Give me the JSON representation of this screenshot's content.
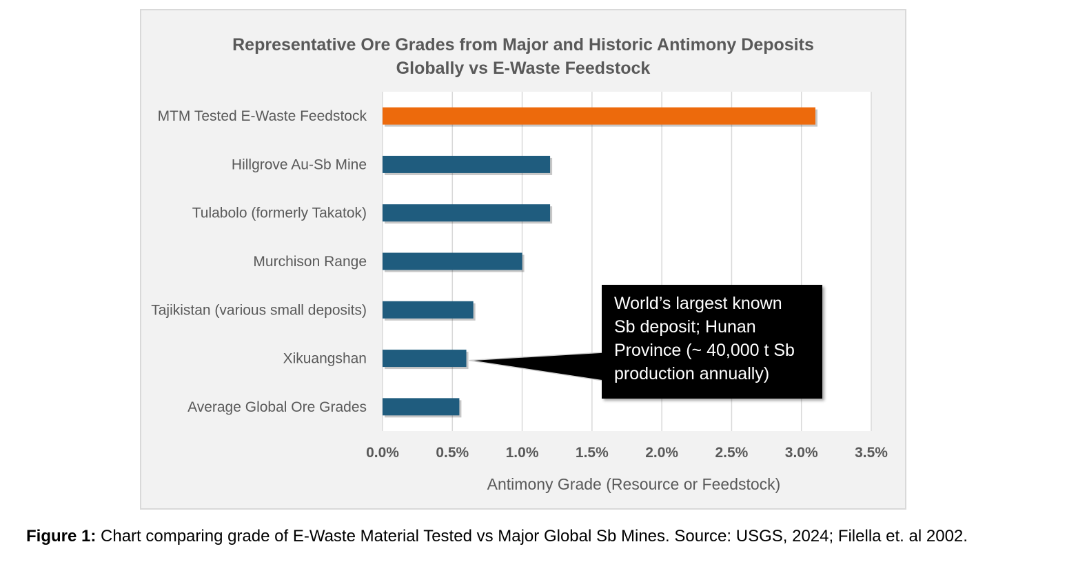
{
  "chart_data": {
    "type": "bar",
    "orientation": "horizontal",
    "title_line1": "Representative Ore Grades from Major and Historic Antimony Deposits",
    "title_line2": "Globally vs E-Waste Feedstock",
    "categories": [
      "MTM Tested E-Waste Feedstock",
      "Hillgrove Au-Sb Mine",
      "Tulabolo (formerly Takatok)",
      "Murchison Range",
      "Tajikistan (various small deposits)",
      "Xikuangshan",
      "Average Global Ore Grades"
    ],
    "values": [
      3.1,
      1.2,
      1.2,
      1.0,
      0.65,
      0.6,
      0.55
    ],
    "bar_colors": [
      "#ed6a0c",
      "#1f5c7e",
      "#1f5c7e",
      "#1f5c7e",
      "#1f5c7e",
      "#1f5c7e",
      "#1f5c7e"
    ],
    "xlim": [
      0,
      3.5
    ],
    "xticks": [
      "0.0%",
      "0.5%",
      "1.0%",
      "1.5%",
      "2.0%",
      "2.5%",
      "3.0%",
      "3.5%"
    ],
    "xlabel": "Antimony Grade (Resource or Feedstock)",
    "grid": "vertical",
    "annotation": {
      "target": "Xikuangshan",
      "lines": [
        "World’s largest known",
        "Sb deposit; Hunan",
        "Province (~ 40,000 t Sb",
        "production annually)"
      ]
    }
  },
  "caption": {
    "label": "Figure 1:",
    "text": " Chart comparing grade of E-Waste Material Tested vs Major Global Sb Mines. Source: USGS, 2024; Filella et. al 2002."
  }
}
